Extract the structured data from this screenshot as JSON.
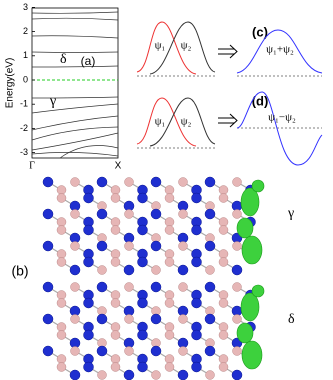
{
  "panel_a": {
    "label": "(a)",
    "y_axis_label": "Energy(eV)",
    "yticks": [
      3,
      2,
      1,
      0,
      -1,
      -2,
      -3
    ],
    "x_labels": [
      "Γ",
      "X"
    ],
    "state_upper": "δ",
    "state_lower": "γ"
  },
  "panel_c": {
    "label": "(c)",
    "psi1": "ψ₁",
    "psi2": "ψ₂",
    "result": "ψ₁+ψ₂"
  },
  "panel_d": {
    "label": "(d)",
    "psi1": "ψ₁",
    "psi2": "ψ₂",
    "result": "ψ₁−ψ₂"
  },
  "panel_b": {
    "label": "(b)",
    "state_top": "γ",
    "state_bottom": "δ"
  }
}
